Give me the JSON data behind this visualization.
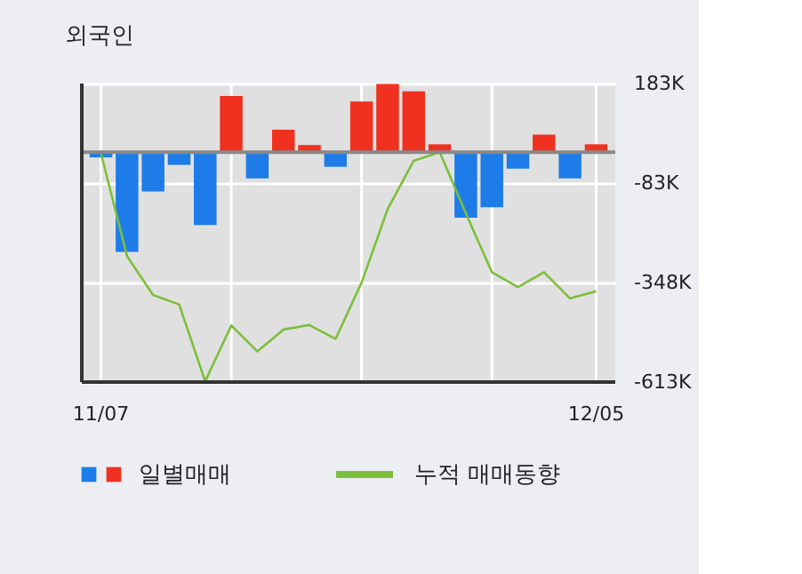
{
  "chart_data": {
    "type": "bar",
    "title": "외국인",
    "categories": [
      "11/07",
      null,
      null,
      null,
      null,
      null,
      null,
      null,
      null,
      null,
      null,
      null,
      null,
      null,
      null,
      null,
      null,
      null,
      null,
      "12/05"
    ],
    "series": [
      {
        "name": "일별매매",
        "colors": [
          "#1e7ce8",
          "#1e7ce8",
          "#1e7ce8",
          "#1e7ce8",
          "#1e7ce8",
          "#f0311f",
          "#1e7ce8",
          "#f0311f",
          "#f0311f",
          "#1e7ce8",
          "#f0311f",
          "#f0311f",
          "#f0311f",
          "#f0311f",
          "#1e7ce8",
          "#1e7ce8",
          "#1e7ce8",
          "#f0311f",
          "#1e7ce8",
          "#f0311f"
        ],
        "values": [
          -14,
          -266,
          -105,
          -34,
          -194,
          150,
          -70,
          60,
          19,
          -39,
          135,
          182,
          162,
          21,
          -175,
          -147,
          -44,
          47,
          -70,
          21
        ]
      },
      {
        "type": "line",
        "name": "누적 매매동향",
        "color": "#7cbf3a",
        "values": [
          -3,
          -277,
          -381,
          -406,
          -611,
          -462,
          -531,
          -473,
          -461,
          -498,
          -348,
          -152,
          -23,
          0,
          -163,
          -320,
          -360,
          -320,
          -390,
          -371
        ]
      }
    ],
    "ylim": [
      -613,
      183
    ],
    "yticks": [
      {
        "value": 183,
        "label": "183K"
      },
      {
        "value": -83,
        "label": "-83K"
      },
      {
        "value": -348,
        "label": "-348K"
      },
      {
        "value": -613,
        "label": "-613K"
      }
    ],
    "ref_lines": [
      {
        "axis": "y",
        "value": 0,
        "color": "#888888"
      }
    ],
    "grid": true,
    "legend": "bottom"
  }
}
